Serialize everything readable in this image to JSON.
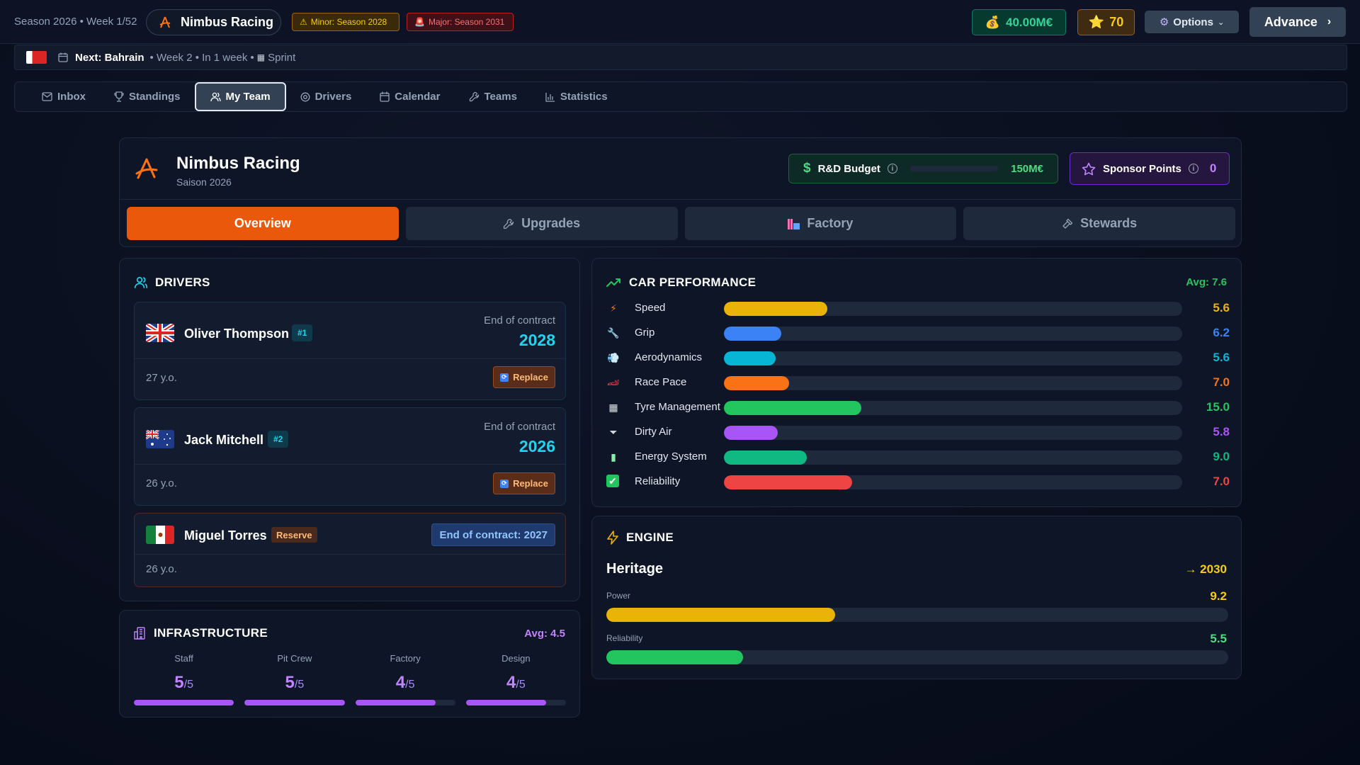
{
  "topbar": {
    "season_week": "Season 2026 • Week 1/52",
    "team_name": "Nimbus Racing",
    "minor_badge": "Minor: Season 2028",
    "major_badge": "Major: Season 2031",
    "money": "40.00M€",
    "stars": "70",
    "options_label": "Options",
    "advance_label": "Advance"
  },
  "next_event": {
    "label": "Next: Bahrain",
    "meta": "• Week 2 • In 1 week •",
    "format": "Sprint"
  },
  "nav": {
    "tabs": [
      {
        "label": "Inbox",
        "icon": "mail-icon"
      },
      {
        "label": "Standings",
        "icon": "trophy-icon"
      },
      {
        "label": "My Team",
        "icon": "users-icon",
        "active": true
      },
      {
        "label": "Drivers",
        "icon": "eye-icon"
      },
      {
        "label": "Calendar",
        "icon": "calendar-icon"
      },
      {
        "label": "Teams",
        "icon": "wrench-icon"
      },
      {
        "label": "Statistics",
        "icon": "bar-chart-icon"
      }
    ]
  },
  "team": {
    "name": "Nimbus Racing",
    "season": "Saison 2026",
    "rd_budget_label": "R&D Budget",
    "rd_budget_value": "150M€",
    "sponsor_label": "Sponsor Points",
    "sponsor_value": "0",
    "subtabs": [
      {
        "label": "Overview",
        "active": true
      },
      {
        "label": "Upgrades"
      },
      {
        "label": "Factory"
      },
      {
        "label": "Stewards"
      }
    ]
  },
  "drivers": {
    "title": "DRIVERS",
    "list": [
      {
        "name": "Oliver Thompson",
        "number": "#1",
        "flag": "GB",
        "contract_label": "End of contract",
        "contract_year": "2028",
        "age": "27 y.o.",
        "action": "Replace"
      },
      {
        "name": "Jack Mitchell",
        "number": "#2",
        "flag": "AU",
        "contract_label": "End of contract",
        "contract_year": "2026",
        "age": "26 y.o.",
        "action": "Replace"
      },
      {
        "name": "Miguel Torres",
        "tag": "Reserve",
        "flag": "MX",
        "contract_pill": "End of contract: 2027",
        "age": "26 y.o."
      }
    ]
  },
  "infrastructure": {
    "title": "INFRASTRUCTURE",
    "avg": "Avg: 4.5",
    "items": [
      {
        "label": "Staff",
        "value": "5",
        "max": "/5",
        "pct": 100
      },
      {
        "label": "Pit Crew",
        "value": "5",
        "max": "/5",
        "pct": 100
      },
      {
        "label": "Factory",
        "value": "4",
        "max": "/5",
        "pct": 80
      },
      {
        "label": "Design",
        "value": "4",
        "max": "/5",
        "pct": 80
      }
    ]
  },
  "car_performance": {
    "title": "CAR PERFORMANCE",
    "avg": "Avg: 7.6",
    "stats": [
      {
        "label": "Speed",
        "value": "5.6",
        "pct": 22.5,
        "color": "#eab308",
        "icon": "lightning-icon"
      },
      {
        "label": "Grip",
        "value": "6.2",
        "pct": 12.5,
        "color": "#3b82f6",
        "icon": "wrench-icon"
      },
      {
        "label": "Aerodynamics",
        "value": "5.6",
        "pct": 11.3,
        "color": "#06b6d4",
        "icon": "wind-icon"
      },
      {
        "label": "Race Pace",
        "value": "7.0",
        "pct": 14.2,
        "color": "#f97316",
        "icon": "race-car-icon"
      },
      {
        "label": "Tyre Management",
        "value": "15.0",
        "pct": 30.0,
        "color": "#22c55e",
        "icon": "checkered-flag-icon"
      },
      {
        "label": "Dirty Air",
        "value": "5.8",
        "pct": 11.7,
        "color": "#a855f7",
        "icon": "funnel-icon"
      },
      {
        "label": "Energy System",
        "value": "9.0",
        "pct": 18.1,
        "color": "#10b981",
        "icon": "battery-icon"
      },
      {
        "label": "Reliability",
        "value": "7.0",
        "pct": 28.0,
        "color": "#ef4444",
        "icon": "check-box-icon"
      }
    ]
  },
  "engine": {
    "title": "ENGINE",
    "name": "Heritage",
    "until": "→ 2030",
    "power_label": "Power",
    "power_value": "9.2",
    "power_pct": 36.8,
    "reliability_label": "Reliability",
    "reliability_value": "5.5",
    "reliability_pct": 22.0
  }
}
